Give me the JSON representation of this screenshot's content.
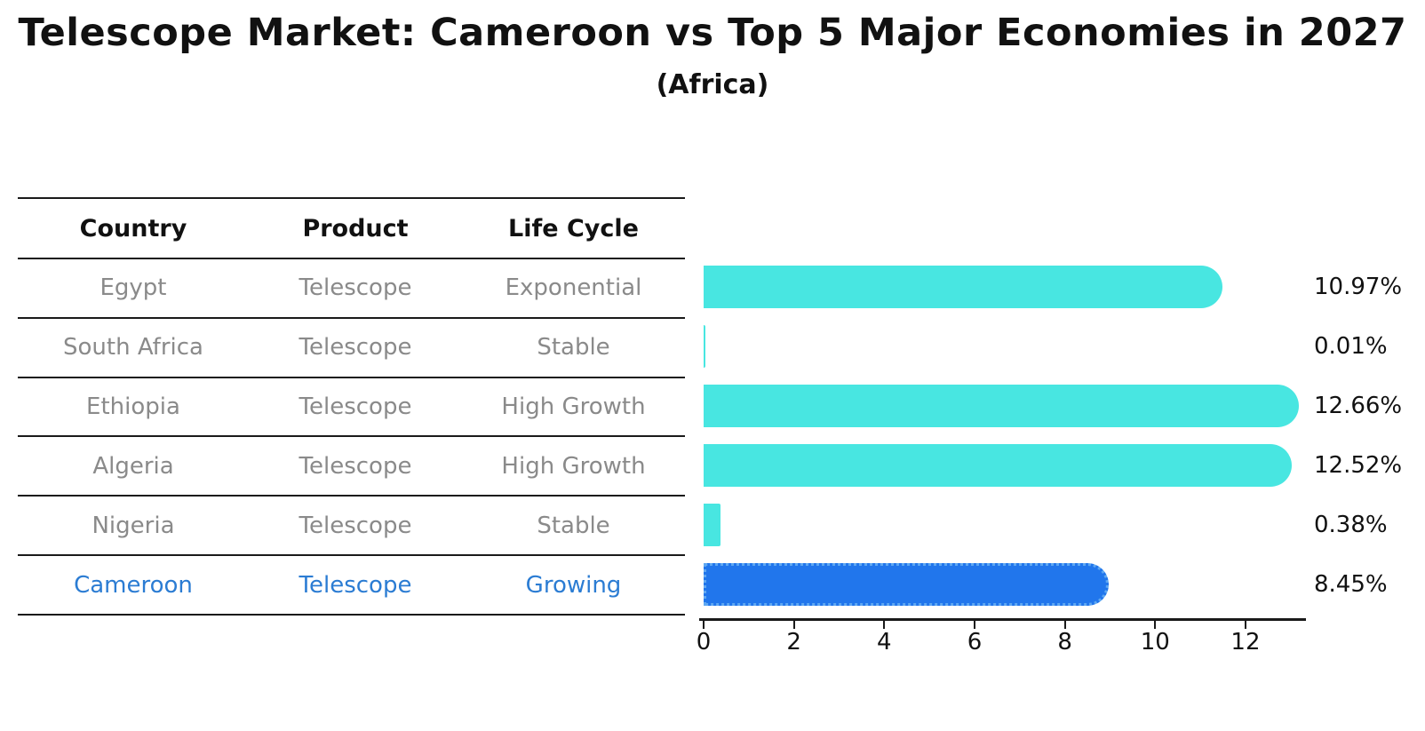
{
  "title": "Telescope Market: Cameroon vs Top 5 Major Economies in 2027",
  "subtitle": "(Africa)",
  "table": {
    "headers": [
      "Country",
      "Product",
      "Life Cycle"
    ],
    "rows": [
      {
        "country": "Egypt",
        "product": "Telescope",
        "life_cycle": "Exponential",
        "highlight": false
      },
      {
        "country": "South Africa",
        "product": "Telescope",
        "life_cycle": "Stable",
        "highlight": false
      },
      {
        "country": "Ethiopia",
        "product": "Telescope",
        "life_cycle": "High Growth",
        "highlight": false
      },
      {
        "country": "Algeria",
        "product": "Telescope",
        "life_cycle": "High Growth",
        "highlight": false
      },
      {
        "country": "Nigeria",
        "product": "Telescope",
        "life_cycle": "Stable",
        "highlight": false
      },
      {
        "country": "Cameroon",
        "product": "Telescope",
        "life_cycle": "Growing",
        "highlight": true
      }
    ]
  },
  "chart_data": {
    "type": "bar",
    "orientation": "horizontal",
    "title": "Telescope Market: Cameroon vs Top 5 Major Economies in 2027 (Africa)",
    "categories": [
      "Egypt",
      "South Africa",
      "Ethiopia",
      "Algeria",
      "Nigeria",
      "Cameroon"
    ],
    "values": [
      10.97,
      0.01,
      12.66,
      12.52,
      0.38,
      8.45
    ],
    "value_labels": [
      "10.97%",
      "0.01%",
      "12.66%",
      "12.52%",
      "0.38%",
      "8.45%"
    ],
    "value_suffix": "%",
    "highlight_index": 5,
    "xticks": [
      0,
      2,
      4,
      6,
      8,
      10,
      12
    ],
    "xlim": [
      0,
      13.3
    ],
    "xlabel": "",
    "ylabel": "",
    "grid": false,
    "legend": "none",
    "bar_color": "#48e6e1",
    "highlight_color": "#2176ec",
    "highlight_text_color": "#2b7cd3"
  }
}
